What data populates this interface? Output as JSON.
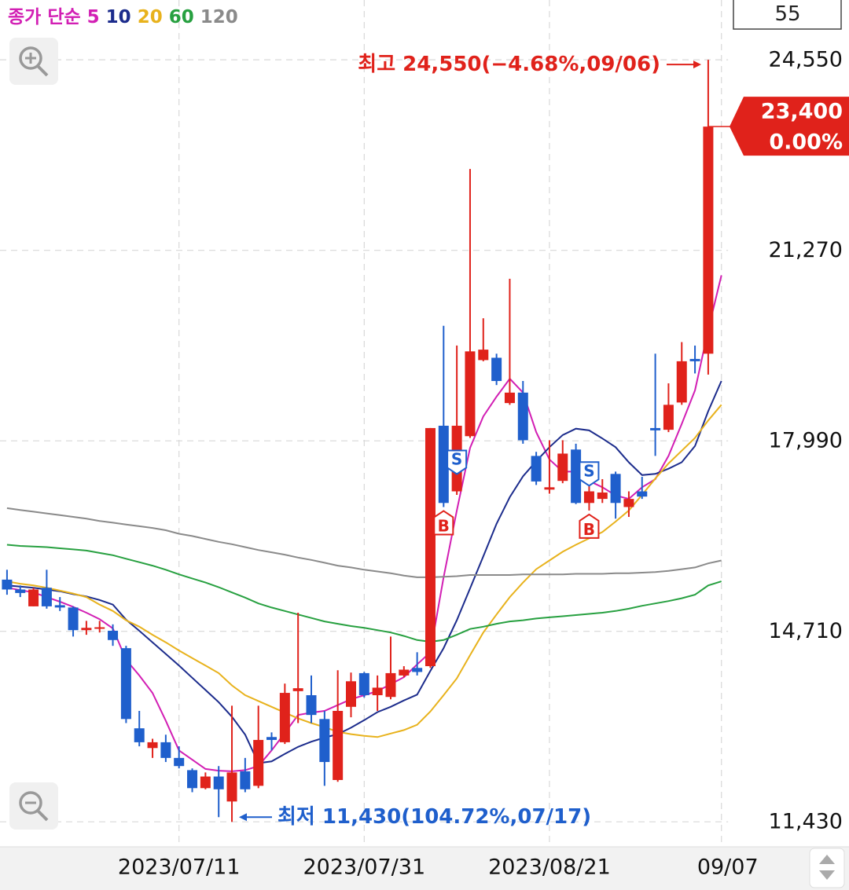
{
  "chart_data": {
    "type": "candlestick",
    "legend_prefix": "종가 단순",
    "period_box": "55",
    "up_color": "#e0221b",
    "down_color": "#1f5fcc",
    "categories": [
      null,
      null,
      null,
      null,
      null,
      null,
      null,
      null,
      null,
      null,
      null,
      null,
      null,
      "2023/07/11",
      null,
      null,
      null,
      null,
      null,
      null,
      null,
      null,
      null,
      null,
      null,
      null,
      null,
      "2023/07/31",
      null,
      null,
      null,
      null,
      null,
      null,
      null,
      null,
      null,
      null,
      null,
      null,
      null,
      "2023/08/21",
      null,
      null,
      null,
      null,
      null,
      null,
      null,
      null,
      null,
      null,
      null,
      null,
      "09/07"
    ],
    "open": [
      15600,
      15430,
      15140,
      15460,
      15160,
      15120,
      14730,
      14760,
      14720,
      14420,
      13040,
      12700,
      12800,
      12530,
      12320,
      12010,
      12210,
      11780,
      12300,
      12050,
      12890,
      12800,
      13680,
      13610,
      13200,
      12150,
      13410,
      13990,
      13610,
      13580,
      13950,
      14080,
      14110,
      18250,
      17120,
      18070,
      19380,
      19420,
      18640,
      18820,
      17730,
      17150,
      17300,
      17840,
      16920,
      16990,
      17420,
      16850,
      17120,
      18210,
      18180,
      18650,
      19400,
      19490,
      null
    ],
    "high": [
      15770,
      15500,
      15460,
      15770,
      15300,
      15140,
      14890,
      14890,
      14830,
      14460,
      13340,
      12860,
      12930,
      12730,
      12350,
      12280,
      12390,
      13430,
      12530,
      13430,
      12970,
      13810,
      15030,
      13950,
      13340,
      14040,
      14000,
      14010,
      13950,
      14620,
      14110,
      14350,
      18210,
      19970,
      19630,
      22670,
      20100,
      19490,
      20780,
      19020,
      17800,
      18000,
      18000,
      17940,
      17600,
      17330,
      17460,
      17120,
      17370,
      19490,
      18980,
      19690,
      19630,
      24550,
      null
    ],
    "low": [
      15340,
      15300,
      15140,
      15100,
      15060,
      14620,
      14650,
      14690,
      14460,
      13130,
      12730,
      12530,
      12460,
      12350,
      11940,
      11990,
      11510,
      11430,
      11940,
      12010,
      12660,
      12770,
      13130,
      13130,
      12050,
      12120,
      13230,
      13570,
      13340,
      13540,
      13920,
      13950,
      14080,
      16850,
      17060,
      18040,
      19360,
      18950,
      18610,
      17940,
      17230,
      17080,
      17260,
      16900,
      16790,
      16920,
      16650,
      16680,
      16990,
      17730,
      18140,
      18610,
      19150,
      19130,
      null
    ],
    "close": [
      15430,
      15370,
      15430,
      15140,
      15120,
      14730,
      14770,
      14780,
      14560,
      13200,
      12800,
      12800,
      12530,
      12390,
      12010,
      12210,
      11990,
      12280,
      11990,
      12840,
      12840,
      13650,
      13730,
      13270,
      12460,
      13340,
      13850,
      13610,
      13740,
      13990,
      14050,
      14010,
      18210,
      16920,
      18250,
      19530,
      19560,
      19020,
      18820,
      18000,
      17290,
      17190,
      17770,
      16920,
      17120,
      17100,
      16920,
      16990,
      17030,
      18170,
      18610,
      19360,
      19360,
      23400,
      null
    ],
    "series": [
      {
        "name": "5",
        "color": "#d21fb4",
        "values": [
          15460,
          15420,
          15380,
          15300,
          15220,
          15130,
          15030,
          14920,
          14760,
          14220,
          13950,
          13650,
          13170,
          12660,
          12500,
          12340,
          12310,
          12300,
          12320,
          12390,
          12660,
          12960,
          13270,
          13310,
          13340,
          13440,
          13540,
          13610,
          13680,
          13800,
          13920,
          14140,
          14350,
          15640,
          16790,
          17870,
          18410,
          18750,
          19060,
          18820,
          18140,
          17670,
          17460,
          17460,
          17300,
          17190,
          17050,
          16990,
          17190,
          17330,
          17730,
          18280,
          18860,
          19900,
          20840
        ]
      },
      {
        "name": "10",
        "color": "#1c2c8c",
        "values": [
          15500,
          15480,
          15460,
          15430,
          15400,
          15350,
          15310,
          15250,
          15170,
          14910,
          14720,
          14520,
          14320,
          14120,
          13910,
          13700,
          13490,
          13240,
          12930,
          12440,
          12470,
          12600,
          12720,
          12810,
          12880,
          12940,
          13050,
          13180,
          13320,
          13410,
          13520,
          13620,
          14030,
          14420,
          14900,
          15450,
          16000,
          16560,
          17020,
          17380,
          17640,
          17880,
          18090,
          18200,
          18170,
          18030,
          17880,
          17620,
          17400,
          17420,
          17510,
          17620,
          17900,
          18500,
          19020
        ]
      },
      {
        "name": "20",
        "color": "#e8b21c",
        "values": [
          15570,
          15530,
          15500,
          15460,
          15410,
          15360,
          15300,
          15170,
          15060,
          14900,
          14790,
          14650,
          14520,
          14380,
          14250,
          14120,
          13990,
          13780,
          13610,
          13510,
          13410,
          13310,
          13210,
          13130,
          13060,
          12980,
          12940,
          12910,
          12890,
          12950,
          13010,
          13100,
          13330,
          13610,
          13900,
          14300,
          14690,
          15000,
          15300,
          15550,
          15780,
          15930,
          16080,
          16200,
          16310,
          16420,
          16600,
          16790,
          17060,
          17340,
          17600,
          17820,
          18040,
          18340,
          18610
        ]
      },
      {
        "name": "60",
        "color": "#27a040",
        "values": [
          16200,
          16180,
          16170,
          16160,
          16140,
          16120,
          16100,
          16060,
          16020,
          15960,
          15900,
          15840,
          15770,
          15690,
          15620,
          15550,
          15470,
          15380,
          15290,
          15190,
          15120,
          15060,
          15000,
          14940,
          14880,
          14840,
          14800,
          14770,
          14730,
          14690,
          14630,
          14560,
          14530,
          14560,
          14650,
          14750,
          14790,
          14840,
          14880,
          14900,
          14930,
          14950,
          14970,
          14990,
          15010,
          15030,
          15060,
          15100,
          15150,
          15190,
          15230,
          15280,
          15340,
          15500,
          15570
        ]
      },
      {
        "name": "120",
        "color": "#8a8a8a",
        "values": [
          16830,
          16800,
          16770,
          16740,
          16710,
          16680,
          16650,
          16610,
          16580,
          16550,
          16520,
          16490,
          16450,
          16390,
          16350,
          16300,
          16250,
          16210,
          16160,
          16110,
          16070,
          16030,
          15980,
          15940,
          15890,
          15840,
          15810,
          15770,
          15740,
          15710,
          15670,
          15640,
          15640,
          15650,
          15660,
          15680,
          15680,
          15680,
          15680,
          15690,
          15690,
          15690,
          15690,
          15700,
          15700,
          15700,
          15710,
          15710,
          15720,
          15730,
          15750,
          15780,
          15810,
          15880,
          15930
        ]
      }
    ],
    "buy_signals": [
      null,
      null,
      null,
      null,
      null,
      null,
      null,
      null,
      null,
      null,
      null,
      null,
      null,
      null,
      null,
      null,
      null,
      null,
      null,
      null,
      null,
      null,
      null,
      null,
      null,
      null,
      null,
      null,
      null,
      null,
      null,
      null,
      null,
      "B",
      null,
      null,
      null,
      null,
      null,
      null,
      null,
      null,
      null,
      null,
      "B",
      null,
      null,
      null,
      null,
      null,
      null,
      null,
      null,
      null,
      null
    ],
    "sell_signals": [
      null,
      null,
      null,
      null,
      null,
      null,
      null,
      null,
      null,
      null,
      null,
      null,
      null,
      null,
      null,
      null,
      null,
      null,
      null,
      null,
      null,
      null,
      null,
      null,
      null,
      null,
      null,
      null,
      null,
      null,
      null,
      null,
      null,
      null,
      "S",
      null,
      null,
      null,
      null,
      null,
      null,
      null,
      null,
      null,
      "S",
      null,
      null,
      null,
      null,
      null,
      null,
      null,
      null,
      null,
      null
    ],
    "ylim": [
      11000,
      25580
    ],
    "yticks": [
      {
        "value": 11430,
        "label": "11,430"
      },
      {
        "value": 14710,
        "label": "14,710"
      },
      {
        "value": 17990,
        "label": "17,990"
      },
      {
        "value": 21270,
        "label": "21,270"
      },
      {
        "value": 24550,
        "label": "24,550"
      }
    ],
    "grid": true,
    "current_price": {
      "value": 23400,
      "label": "23,400",
      "change": "0.00%",
      "color": "#e0221b"
    },
    "annotations": [
      {
        "text": "최고 24,550(−4.68%,09/06)",
        "value": 24550,
        "color": "#e0221b",
        "side": "high"
      },
      {
        "text": "최저 11,430(104.72%,07/17)",
        "value": 11430,
        "color": "#1f5fcc",
        "side": "low"
      }
    ]
  }
}
